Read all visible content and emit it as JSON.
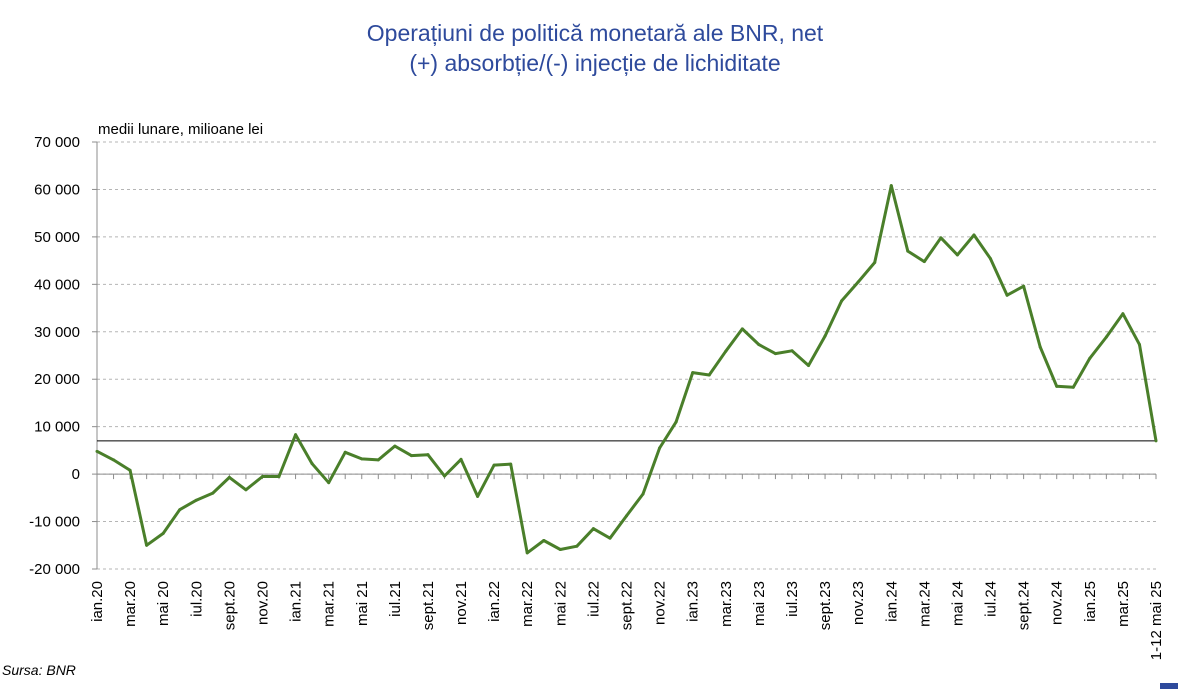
{
  "title_line1": "Operațiuni de politică monetară ale BNR, net",
  "title_line2": "(+) absorbție/(-) injecție de lichiditate",
  "source": "Sursa: BNR",
  "chart_data": {
    "type": "line",
    "title": "Operațiuni de politică monetară ale BNR, net (+) absorbție/(-) injecție de lichiditate",
    "unit_label": "medii lunare, milioane lei",
    "ylim": [
      -20000,
      70000
    ],
    "y_ticks": [
      -20000,
      -10000,
      0,
      10000,
      20000,
      30000,
      40000,
      50000,
      60000,
      70000
    ],
    "y_tick_labels": [
      "-20 000",
      "-10 000",
      "0",
      "10 000",
      "20 000",
      "30 000",
      "40 000",
      "50 000",
      "60 000",
      "70 000"
    ],
    "grid": true,
    "reference_line": 7000,
    "line_color": "#4a7f2a",
    "x": [
      "ian.20",
      "feb.20",
      "mar.20",
      "apr.20",
      "mai 20",
      "iun.20",
      "iul.20",
      "aug.20",
      "sept.20",
      "oct.20",
      "nov.20",
      "dec.20",
      "ian.21",
      "feb.21",
      "mar.21",
      "apr.21",
      "mai 21",
      "iun.21",
      "iul.21",
      "aug.21",
      "sept.21",
      "oct.21",
      "nov.21",
      "dec.21",
      "ian.22",
      "feb.22",
      "mar.22",
      "apr.22",
      "mai 22",
      "iun.22",
      "iul.22",
      "aug.22",
      "sept.22",
      "oct.22",
      "nov.22",
      "dec.22",
      "ian.23",
      "feb.23",
      "mar.23",
      "apr.23",
      "mai 23",
      "iun.23",
      "iul.23",
      "aug.23",
      "sept.23",
      "oct.23",
      "nov.23",
      "dec.23",
      "ian.24",
      "feb.24",
      "mar.24",
      "apr.24",
      "mai 24",
      "iun.24",
      "iul.24",
      "aug.24",
      "sept.24",
      "oct.24",
      "nov.24",
      "dec.24",
      "ian.25",
      "feb.25",
      "mar.25",
      "apr.25",
      "1-12 mai 25"
    ],
    "x_tick_labels": [
      "ian.20",
      "mar.20",
      "mai 20",
      "iul.20",
      "sept.20",
      "nov.20",
      "ian.21",
      "mar.21",
      "mai 21",
      "iul.21",
      "sept.21",
      "nov.21",
      "ian.22",
      "mar.22",
      "mai 22",
      "iul.22",
      "sept.22",
      "nov.22",
      "ian.23",
      "mar.23",
      "mai 23",
      "iul.23",
      "sept.23",
      "nov.23",
      "ian.24",
      "mar.24",
      "mai 24",
      "iul.24",
      "sept.24",
      "nov.24",
      "ian.25",
      "mar.25",
      "1-12 mai 25"
    ],
    "series": [
      {
        "values": [
          4800,
          3000,
          800,
          -15000,
          -12500,
          -7500,
          -5500,
          -4000,
          -700,
          -3300,
          -500,
          -500,
          8300,
          2200,
          -1800,
          4600,
          3200,
          3000,
          5900,
          3900,
          4100,
          -400,
          3100,
          -4700,
          1900,
          2100,
          -16600,
          -14000,
          -15900,
          -15200,
          -11500,
          -13500,
          -8800,
          -4200,
          5500,
          11000,
          21400,
          20900,
          25900,
          30600,
          27300,
          25400,
          26000,
          22900,
          29100,
          36500,
          40500,
          44600,
          60800,
          47000,
          44800,
          49800,
          46200,
          50400,
          45400,
          37700,
          39600,
          26800,
          18500,
          18300,
          24400,
          28900,
          33800,
          27300,
          7000
        ]
      }
    ]
  }
}
